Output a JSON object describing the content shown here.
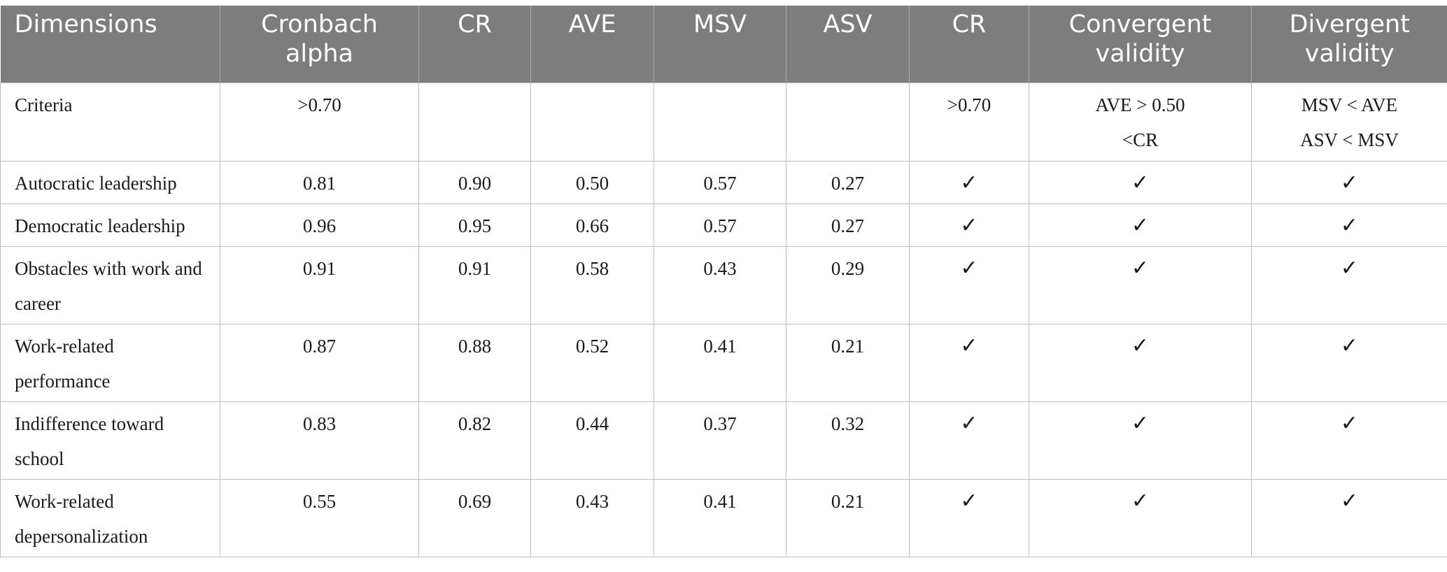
{
  "headers": [
    "Dimensions",
    "Cronbach alpha",
    "CR",
    "AVE",
    "MSV",
    "ASV",
    "CR",
    "Convergent validity",
    "Divergent validity"
  ],
  "criteria": {
    "label": "Criteria",
    "cronbach": ">0.70",
    "cr": "",
    "ave": "",
    "msv": "",
    "asv": "",
    "cr2": ">0.70",
    "convergent": [
      "AVE > 0.50",
      "<CR"
    ],
    "divergent": [
      "MSV < AVE",
      "ASV < MSV"
    ]
  },
  "check_mark": "✓",
  "rows": [
    {
      "dimension": "Autocratic leadership",
      "cronbach": "0.81",
      "cr": "0.90",
      "ave": "0.50",
      "msv": "0.57",
      "asv": "0.27"
    },
    {
      "dimension": "Democratic leadership",
      "cronbach": "0.96",
      "cr": "0.95",
      "ave": "0.66",
      "msv": "0.57",
      "asv": "0.27"
    },
    {
      "dimension": "Obstacles with work and career",
      "cronbach": "0.91",
      "cr": "0.91",
      "ave": "0.58",
      "msv": "0.43",
      "asv": "0.29"
    },
    {
      "dimension": "Work-related performance",
      "cronbach": "0.87",
      "cr": "0.88",
      "ave": "0.52",
      "msv": "0.41",
      "asv": "0.21"
    },
    {
      "dimension": "Indifference toward school",
      "cronbach": "0.83",
      "cr": "0.82",
      "ave": "0.44",
      "msv": "0.37",
      "asv": "0.32"
    },
    {
      "dimension": "Work-related depersonalization",
      "cronbach": "0.55",
      "cr": "0.69",
      "ave": "0.43",
      "msv": "0.41",
      "asv": "0.21"
    }
  ]
}
